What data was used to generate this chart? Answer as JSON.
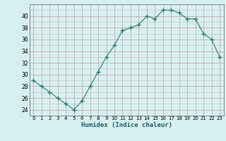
{
  "x": [
    0,
    1,
    2,
    3,
    4,
    5,
    6,
    7,
    8,
    9,
    10,
    11,
    12,
    13,
    14,
    15,
    16,
    17,
    18,
    19,
    20,
    21,
    22,
    23
  ],
  "y": [
    29,
    28,
    27,
    26,
    25,
    24,
    25.5,
    28,
    30.5,
    33,
    35,
    37.5,
    38,
    38.5,
    40,
    39.5,
    41,
    41,
    40.5,
    39.5,
    39.5,
    37,
    36,
    33
  ],
  "line_color": "#2e7d6e",
  "marker": "+",
  "marker_size": 4,
  "bg_color": "#d6f0f0",
  "grid_color_major": "#c8aaaa",
  "grid_color_minor": "#c8c0c0",
  "xlabel": "Humidex (Indice chaleur)",
  "ylim": [
    23,
    42
  ],
  "yticks": [
    24,
    26,
    28,
    30,
    32,
    34,
    36,
    38,
    40
  ],
  "xlim": [
    -0.5,
    23.5
  ],
  "xticks": [
    0,
    1,
    2,
    3,
    4,
    5,
    6,
    7,
    8,
    9,
    10,
    11,
    12,
    13,
    14,
    15,
    16,
    17,
    18,
    19,
    20,
    21,
    22,
    23
  ]
}
